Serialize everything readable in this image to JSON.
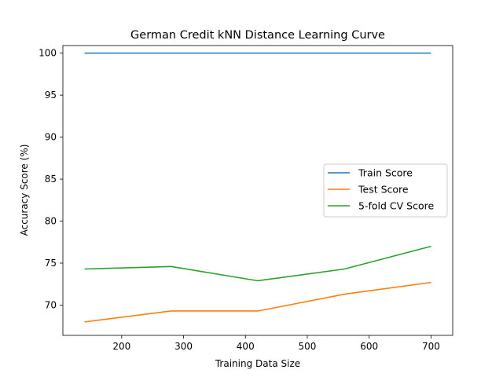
{
  "chart_data": {
    "type": "line",
    "title": "German Credit kNN Distance Learning Curve",
    "xlabel": "Training Data Size",
    "ylabel": "Accuracy Score (%)",
    "x": [
      140,
      280,
      420,
      560,
      700
    ],
    "xlim": [
      105,
      735
    ],
    "ylim": [
      66.4,
      100.9
    ],
    "xticks": [
      200,
      300,
      400,
      500,
      600,
      700
    ],
    "yticks": [
      70,
      75,
      80,
      85,
      90,
      95,
      100
    ],
    "grid": false,
    "legend_position": "center-right",
    "series": [
      {
        "name": "Train Score",
        "color": "#1f77b4",
        "values": [
          100,
          100,
          100,
          100,
          100
        ]
      },
      {
        "name": "Test Score",
        "color": "#ff7f0e",
        "values": [
          68.0,
          69.3,
          69.3,
          71.3,
          72.7
        ]
      },
      {
        "name": "5-fold CV Score",
        "color": "#2ca02c",
        "values": [
          74.3,
          74.6,
          72.9,
          74.3,
          77.0
        ]
      }
    ]
  }
}
